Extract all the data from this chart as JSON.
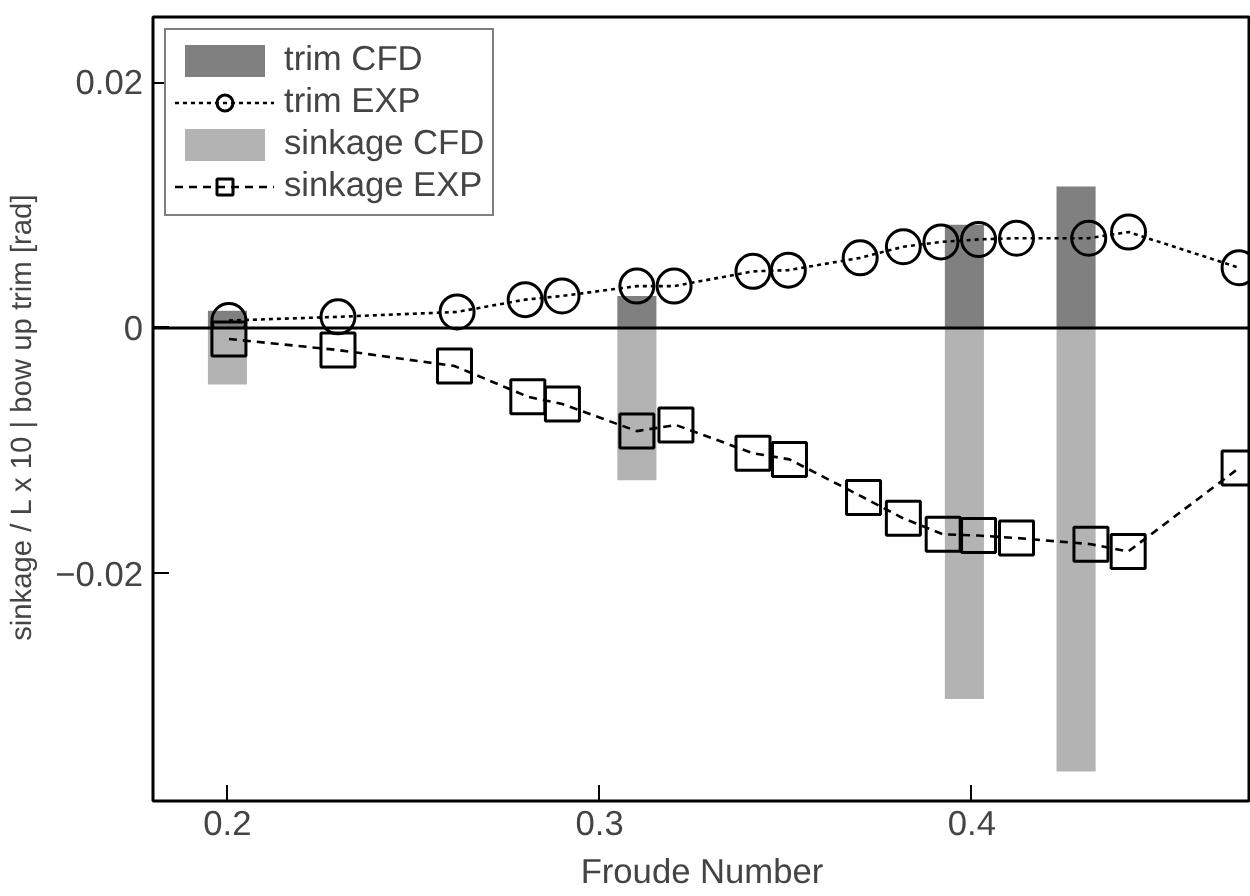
{
  "chart_data": {
    "type": "line",
    "xlabel": "Froude Number",
    "ylabel": "sinkage / L x 10  |  bow up trim [rad]",
    "xlim": [
      0.18,
      0.475
    ],
    "ylim": [
      -0.0385,
      0.0253
    ],
    "xticks": [
      0.2,
      0.3,
      0.4
    ],
    "yticks": [
      {
        "value": 0.02,
        "label": "0.02"
      },
      {
        "value": 0,
        "label": "0"
      },
      {
        "value": -0.02,
        "label": "−0.02"
      }
    ],
    "grid": false,
    "legend": "top left",
    "stacked": true,
    "ref_lines": [
      {
        "axis": "y",
        "value": 0,
        "color": "#000000"
      }
    ],
    "series": [
      {
        "name": "trim CFD",
        "type": "bar",
        "color": "#808080",
        "x": [
          0.2,
          0.31,
          0.398,
          0.428
        ],
        "values": [
          0.0014,
          0.0026,
          0.0084,
          0.0115
        ]
      },
      {
        "name": "trim EXP",
        "color": "#000000",
        "marker": "circle",
        "line_style": "dotted",
        "x": [
          0.2004,
          0.2297,
          0.2617,
          0.28,
          0.2899,
          0.31,
          0.32,
          0.3412,
          0.3507,
          0.37,
          0.3816,
          0.3917,
          0.4018,
          0.412,
          0.4314,
          0.4421,
          0.4718
        ],
        "values": [
          0.0006,
          0.0009,
          0.0013,
          0.0023,
          0.0026,
          0.0034,
          0.0034,
          0.0046,
          0.0047,
          0.0057,
          0.0066,
          0.007,
          0.0072,
          0.0073,
          0.0073,
          0.0078,
          0.0049
        ]
      },
      {
        "name": "sinkage CFD",
        "type": "bar",
        "color": "#b3b3b3",
        "x": [
          0.2,
          0.31,
          0.398,
          0.428
        ],
        "values": [
          -0.0046,
          -0.0124,
          -0.0302,
          -0.0361
        ]
      },
      {
        "name": "sinkage EXP",
        "color": "#000000",
        "marker": "square",
        "line_style": "dashed",
        "x": [
          0.2004,
          0.2297,
          0.261,
          0.2807,
          0.29,
          0.31,
          0.3205,
          0.3412,
          0.351,
          0.3709,
          0.3816,
          0.3923,
          0.4018,
          0.412,
          0.432,
          0.442,
          0.4718
        ],
        "values": [
          -0.0009,
          -0.0018,
          -0.0031,
          -0.0056,
          -0.0062,
          -0.0084,
          -0.0079,
          -0.0102,
          -0.0107,
          -0.0138,
          -0.0155,
          -0.0168,
          -0.0169,
          -0.0171,
          -0.0176,
          -0.0182,
          -0.0114
        ]
      }
    ]
  }
}
